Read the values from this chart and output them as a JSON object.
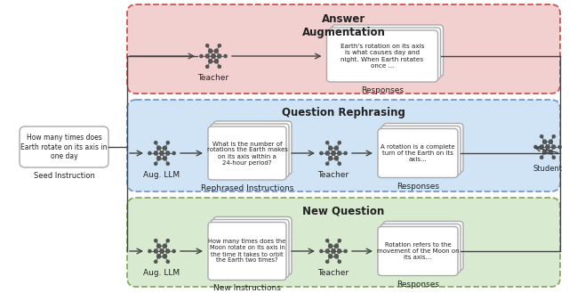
{
  "bg_color": "#ffffff",
  "panel_colors": {
    "answer_aug": "#f2d0d0",
    "question_reph": "#d0e4f5",
    "new_question": "#d8ead0"
  },
  "panel_border_colors": {
    "answer_aug": "#cc5555",
    "question_reph": "#7799cc",
    "new_question": "#88aa66"
  },
  "panel_titles": {
    "answer_aug": "Answer\nAugmentation",
    "question_reph": "Question Rephrasing",
    "new_question": "New Question"
  },
  "seed_box_text": "How many times does\nEarth rotate on its axis in\none day",
  "seed_label": "Seed Instruction",
  "student_label": "Student",
  "answer_aug_response": "Earth's rotation on its axis\nis what causes day and\nnight. When Earth rotates\nonce ...",
  "answer_aug_teacher_label": "Teacher",
  "answer_aug_response_label": "Responses",
  "reph_instruction": "What is the number of\nrotations the Earth makes\non its axis within a\n24-hour period?",
  "reph_response": "A rotation is a complete\nturn of the Earth on its\naxis...",
  "reph_labels": [
    "Aug. LLM",
    "Rephrased Instructions",
    "Teacher",
    "Responses"
  ],
  "new_instruction": "How many times does the\nMoon rotate on its axis in\nthe time it takes to orbit\nthe Earth two times?",
  "new_response": "Rotation refers to the\nmovement of the Moon on\nits axis...",
  "new_labels": [
    "Aug. LLM",
    "New Instructions",
    "Teacher",
    "Responses"
  ]
}
